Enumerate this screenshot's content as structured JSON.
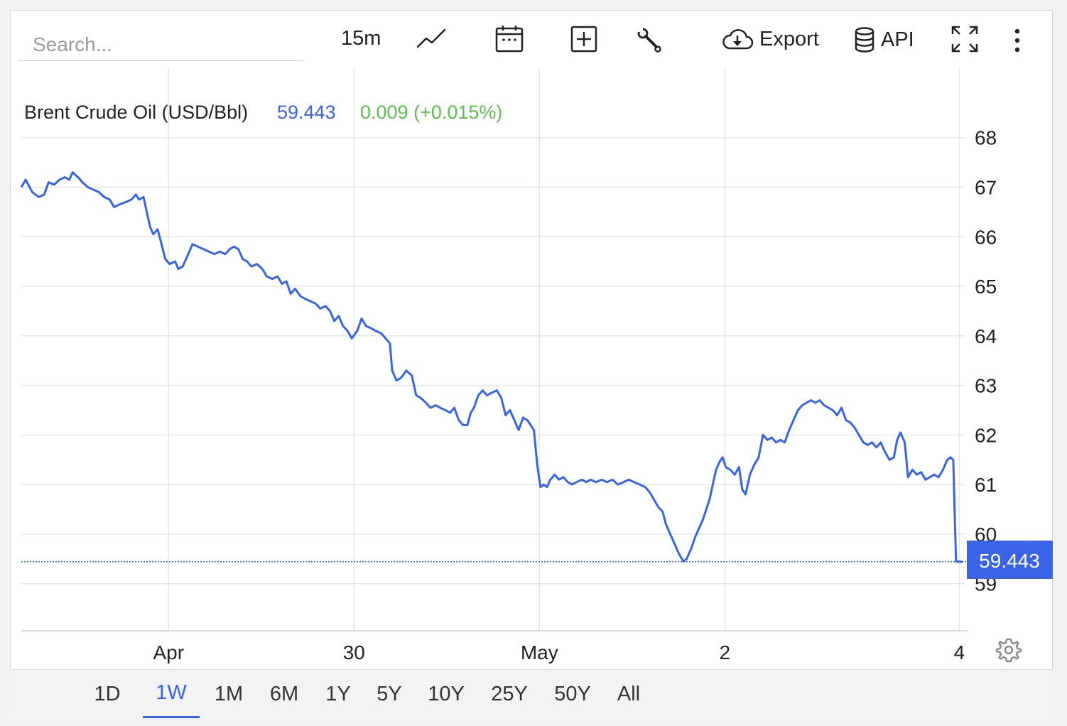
{
  "search": {
    "placeholder": "Search..."
  },
  "toolbar": {
    "interval_label": "15m",
    "chart_type_icon": "line-chart-icon",
    "calendar_icon": "calendar-icon",
    "compare_icon": "plus-box-icon",
    "tools_icon": "wrench-icon",
    "export_label": "Export",
    "export_icon": "cloud-download-icon",
    "api_label": "API",
    "api_icon": "database-icon",
    "fullscreen_icon": "expand-icon",
    "more_icon": "more-vertical-icon"
  },
  "legend": {
    "name": "Brent Crude Oil (USD/Bbl)",
    "value": "59.443",
    "change": "0.009 (+0.015%)"
  },
  "colors": {
    "line": "#3a64e8",
    "change_positive": "#5cbf4e",
    "grid": "#e6e6e6",
    "price_tag_bg": "#3a64e8"
  },
  "price_tag": "59.443",
  "chart_data": {
    "type": "line",
    "title": "Brent Crude Oil (USD/Bbl)",
    "xlabel": "",
    "ylabel": "",
    "ylim": [
      58.05,
      69.4
    ],
    "yticks": [
      59,
      60,
      61,
      62,
      63,
      64,
      65,
      66,
      67,
      68
    ],
    "x_ticks": [
      {
        "label": "Apr",
        "x": 13.5
      },
      {
        "label": "30",
        "x": 30.5
      },
      {
        "label": "May",
        "x": 47.5
      },
      {
        "label": "2",
        "x": 64.5
      },
      {
        "label": "4",
        "x": 86
      }
    ],
    "xlim": [
      0,
      86.3
    ],
    "grid": true,
    "last_value": 59.443,
    "series": [
      {
        "name": "Brent Crude Oil (USD/Bbl)",
        "points": [
          [
            0.0,
            67.0
          ],
          [
            0.4,
            67.15
          ],
          [
            1.0,
            66.9
          ],
          [
            1.6,
            66.8
          ],
          [
            2.1,
            66.85
          ],
          [
            2.5,
            67.1
          ],
          [
            3.0,
            67.05
          ],
          [
            3.5,
            67.15
          ],
          [
            4.0,
            67.2
          ],
          [
            4.4,
            67.15
          ],
          [
            4.7,
            67.3
          ],
          [
            5.2,
            67.2
          ],
          [
            5.6,
            67.1
          ],
          [
            6.1,
            67.0
          ],
          [
            6.6,
            66.95
          ],
          [
            7.1,
            66.9
          ],
          [
            7.6,
            66.8
          ],
          [
            8.1,
            66.75
          ],
          [
            8.5,
            66.6
          ],
          [
            9.0,
            66.65
          ],
          [
            9.6,
            66.7
          ],
          [
            10.1,
            66.75
          ],
          [
            10.5,
            66.85
          ],
          [
            10.8,
            66.75
          ],
          [
            11.2,
            66.8
          ],
          [
            11.5,
            66.5
          ],
          [
            11.8,
            66.2
          ],
          [
            12.1,
            66.05
          ],
          [
            12.5,
            66.15
          ],
          [
            12.8,
            65.9
          ],
          [
            13.2,
            65.55
          ],
          [
            13.6,
            65.45
          ],
          [
            14.1,
            65.5
          ],
          [
            14.4,
            65.35
          ],
          [
            14.8,
            65.4
          ],
          [
            15.2,
            65.6
          ],
          [
            15.7,
            65.85
          ],
          [
            16.2,
            65.8
          ],
          [
            16.7,
            65.75
          ],
          [
            17.2,
            65.7
          ],
          [
            17.7,
            65.65
          ],
          [
            18.2,
            65.7
          ],
          [
            18.7,
            65.65
          ],
          [
            19.1,
            65.75
          ],
          [
            19.5,
            65.8
          ],
          [
            19.9,
            65.75
          ],
          [
            20.3,
            65.55
          ],
          [
            20.7,
            65.5
          ],
          [
            21.1,
            65.4
          ],
          [
            21.6,
            65.45
          ],
          [
            22.1,
            65.35
          ],
          [
            22.5,
            65.2
          ],
          [
            23.0,
            65.15
          ],
          [
            23.5,
            65.2
          ],
          [
            23.9,
            65.05
          ],
          [
            24.3,
            65.1
          ],
          [
            24.7,
            64.85
          ],
          [
            25.1,
            64.95
          ],
          [
            25.6,
            64.8
          ],
          [
            26.0,
            64.75
          ],
          [
            26.5,
            64.7
          ],
          [
            27.0,
            64.65
          ],
          [
            27.4,
            64.55
          ],
          [
            27.9,
            64.6
          ],
          [
            28.3,
            64.5
          ],
          [
            28.7,
            64.3
          ],
          [
            29.1,
            64.4
          ],
          [
            29.5,
            64.2
          ],
          [
            29.9,
            64.1
          ],
          [
            30.3,
            63.95
          ],
          [
            30.8,
            64.1
          ],
          [
            31.2,
            64.35
          ],
          [
            31.6,
            64.2
          ],
          [
            32.1,
            64.15
          ],
          [
            32.5,
            64.1
          ],
          [
            33.0,
            64.05
          ],
          [
            33.4,
            63.95
          ],
          [
            33.8,
            63.85
          ],
          [
            34.0,
            63.3
          ],
          [
            34.4,
            63.1
          ],
          [
            34.8,
            63.15
          ],
          [
            35.3,
            63.3
          ],
          [
            35.8,
            63.2
          ],
          [
            36.2,
            62.8
          ],
          [
            36.6,
            62.75
          ],
          [
            37.1,
            62.65
          ],
          [
            37.5,
            62.55
          ],
          [
            38.0,
            62.6
          ],
          [
            38.4,
            62.55
          ],
          [
            38.9,
            62.5
          ],
          [
            39.3,
            62.45
          ],
          [
            39.7,
            62.55
          ],
          [
            40.1,
            62.3
          ],
          [
            40.5,
            62.2
          ],
          [
            40.9,
            62.2
          ],
          [
            41.2,
            62.45
          ],
          [
            41.5,
            62.55
          ],
          [
            41.9,
            62.8
          ],
          [
            42.3,
            62.9
          ],
          [
            42.7,
            62.8
          ],
          [
            43.1,
            62.85
          ],
          [
            43.6,
            62.9
          ],
          [
            44.0,
            62.75
          ],
          [
            44.4,
            62.4
          ],
          [
            44.8,
            62.5
          ],
          [
            45.2,
            62.3
          ],
          [
            45.6,
            62.1
          ],
          [
            46.0,
            62.35
          ],
          [
            46.4,
            62.3
          ],
          [
            46.7,
            62.2
          ],
          [
            47.0,
            62.1
          ],
          [
            47.3,
            61.4
          ],
          [
            47.6,
            60.95
          ],
          [
            47.9,
            61.0
          ],
          [
            48.2,
            60.95
          ],
          [
            48.5,
            61.1
          ],
          [
            48.9,
            61.2
          ],
          [
            49.3,
            61.1
          ],
          [
            49.7,
            61.15
          ],
          [
            50.1,
            61.05
          ],
          [
            50.5,
            61.0
          ],
          [
            50.9,
            61.05
          ],
          [
            51.4,
            61.1
          ],
          [
            51.8,
            61.05
          ],
          [
            52.2,
            61.1
          ],
          [
            52.7,
            61.05
          ],
          [
            53.2,
            61.1
          ],
          [
            53.7,
            61.05
          ],
          [
            54.2,
            61.1
          ],
          [
            54.7,
            61.0
          ],
          [
            55.2,
            61.05
          ],
          [
            55.7,
            61.1
          ],
          [
            56.2,
            61.05
          ],
          [
            56.7,
            61.0
          ],
          [
            57.2,
            60.95
          ],
          [
            57.6,
            60.85
          ],
          [
            58.0,
            60.7
          ],
          [
            58.4,
            60.55
          ],
          [
            58.8,
            60.45
          ],
          [
            59.1,
            60.2
          ],
          [
            59.5,
            60.0
          ],
          [
            59.9,
            59.8
          ],
          [
            60.3,
            59.6
          ],
          [
            60.7,
            59.45
          ],
          [
            61.0,
            59.5
          ],
          [
            61.4,
            59.7
          ],
          [
            61.8,
            59.95
          ],
          [
            62.2,
            60.15
          ],
          [
            62.5,
            60.3
          ],
          [
            62.8,
            60.5
          ],
          [
            63.1,
            60.7
          ],
          [
            63.4,
            61.0
          ],
          [
            63.7,
            61.3
          ],
          [
            64.0,
            61.45
          ],
          [
            64.3,
            61.55
          ],
          [
            64.6,
            61.35
          ],
          [
            65.0,
            61.3
          ],
          [
            65.4,
            61.2
          ],
          [
            65.8,
            61.35
          ],
          [
            66.1,
            60.9
          ],
          [
            66.4,
            60.8
          ],
          [
            66.8,
            61.2
          ],
          [
            67.2,
            61.4
          ],
          [
            67.6,
            61.55
          ],
          [
            68.0,
            62.0
          ],
          [
            68.4,
            61.9
          ],
          [
            68.8,
            61.95
          ],
          [
            69.2,
            61.85
          ],
          [
            69.6,
            61.9
          ],
          [
            70.0,
            61.85
          ],
          [
            70.4,
            62.1
          ],
          [
            70.8,
            62.3
          ],
          [
            71.2,
            62.5
          ],
          [
            71.6,
            62.6
          ],
          [
            72.0,
            62.65
          ],
          [
            72.4,
            62.7
          ],
          [
            72.8,
            62.65
          ],
          [
            73.2,
            62.7
          ],
          [
            73.6,
            62.6
          ],
          [
            74.0,
            62.55
          ],
          [
            74.4,
            62.5
          ],
          [
            74.8,
            62.4
          ],
          [
            75.2,
            62.55
          ],
          [
            75.6,
            62.3
          ],
          [
            76.0,
            62.25
          ],
          [
            76.4,
            62.15
          ],
          [
            76.8,
            62.0
          ],
          [
            77.2,
            61.85
          ],
          [
            77.6,
            61.8
          ],
          [
            78.0,
            61.85
          ],
          [
            78.4,
            61.75
          ],
          [
            78.8,
            61.85
          ],
          [
            79.2,
            61.65
          ],
          [
            79.6,
            61.5
          ],
          [
            80.0,
            61.55
          ],
          [
            80.3,
            61.9
          ],
          [
            80.6,
            62.05
          ],
          [
            81.0,
            61.85
          ],
          [
            81.3,
            61.15
          ],
          [
            81.7,
            61.3
          ],
          [
            82.1,
            61.2
          ],
          [
            82.5,
            61.25
          ],
          [
            82.9,
            61.1
          ],
          [
            83.3,
            61.15
          ],
          [
            83.7,
            61.2
          ],
          [
            84.1,
            61.15
          ],
          [
            84.5,
            61.3
          ],
          [
            84.9,
            61.5
          ],
          [
            85.2,
            61.55
          ],
          [
            85.45,
            61.5
          ],
          [
            85.6,
            60.2
          ],
          [
            85.7,
            59.45
          ],
          [
            86.3,
            59.44
          ]
        ]
      }
    ]
  },
  "ranges": [
    {
      "label": "1D",
      "active": false
    },
    {
      "label": "1W",
      "active": true
    },
    {
      "label": "1M",
      "active": false
    },
    {
      "label": "6M",
      "active": false
    },
    {
      "label": "1Y",
      "active": false
    },
    {
      "label": "5Y",
      "active": false
    },
    {
      "label": "10Y",
      "active": false
    },
    {
      "label": "25Y",
      "active": false
    },
    {
      "label": "50Y",
      "active": false
    },
    {
      "label": "All",
      "active": false
    }
  ],
  "settings_icon": "gear-icon"
}
